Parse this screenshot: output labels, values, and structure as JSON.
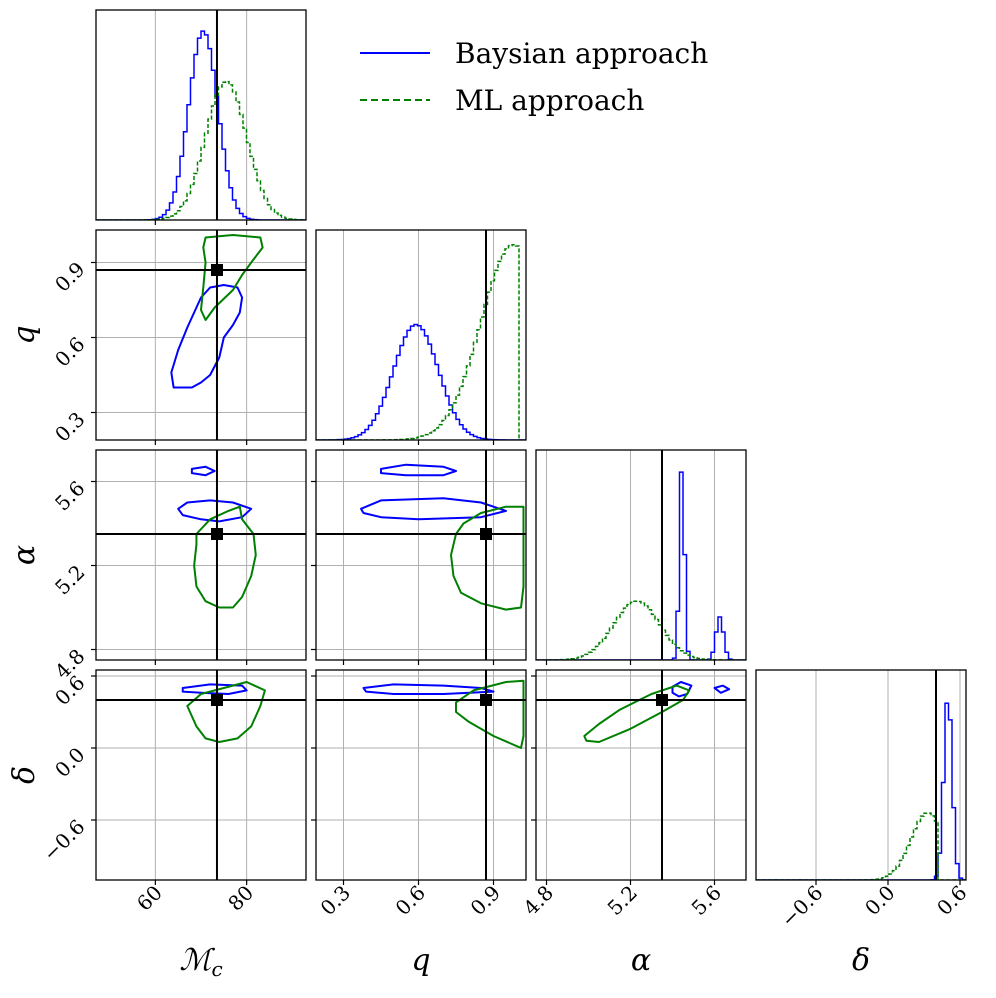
{
  "chart_data": {
    "type": "corner",
    "parameters": [
      {
        "key": "mc",
        "label": "ℳ",
        "label_sub": "c",
        "range": [
          47,
          93
        ],
        "ticks": [
          60,
          80
        ],
        "tick_labels": [
          "60",
          "80"
        ],
        "truth": 73.5
      },
      {
        "key": "q",
        "label": "q",
        "label_sub": "",
        "range": [
          0.19,
          1.03
        ],
        "ticks": [
          0.3,
          0.6,
          0.9
        ],
        "tick_labels": [
          "0.3",
          "0.6",
          "0.9"
        ],
        "truth": 0.87
      },
      {
        "key": "alpha",
        "label": "α",
        "label_sub": "",
        "range": [
          4.75,
          5.75
        ],
        "ticks": [
          4.8,
          5.2,
          5.6
        ],
        "tick_labels": [
          "4.8",
          "5.2",
          "5.6"
        ],
        "truth": 5.35
      },
      {
        "key": "delta",
        "label": "δ",
        "label_sub": "",
        "range": [
          -1.1,
          0.65
        ],
        "ticks": [
          -0.6,
          0.0,
          0.6
        ],
        "tick_labels": [
          "−0.6",
          "0.0",
          "0.6"
        ],
        "truth": 0.4
      }
    ],
    "series": [
      {
        "name": "Baysian approach",
        "color": "#0000ff",
        "style": "solid",
        "marginals": [
          {
            "center": 70.5,
            "sigma": 3.2,
            "peak": 0.9
          },
          {
            "center": 0.59,
            "sigma": 0.09,
            "peak": 0.55
          },
          {
            "modes": [
              {
                "center": 5.445,
                "sigma": 0.012,
                "amp": 1.0
              },
              {
                "center": 5.625,
                "sigma": 0.018,
                "amp": 0.22
              }
            ],
            "peak": 0.93
          },
          {
            "center": 0.5,
            "sigma": 0.035,
            "peak": 0.88
          }
        ]
      },
      {
        "name": "ML approach",
        "color": "#008000",
        "style": "dashed",
        "marginals": [
          {
            "center": 75.5,
            "sigma": 4.5,
            "peak": 0.66
          },
          {
            "center": 0.98,
            "sigma": 0.13,
            "peak": 0.93,
            "cutoff": 0.995
          },
          {
            "center": 5.23,
            "sigma": 0.11,
            "peak": 0.28
          },
          {
            "center": 0.33,
            "sigma": 0.14,
            "peak": 0.32,
            "cutoff": 0.43
          }
        ]
      }
    ],
    "contours": {
      "q_mc": {
        "blue": [
          [
            [
              64,
              0.4
            ],
            [
              63.5,
              0.46
            ],
            [
              65,
              0.55
            ],
            [
              67,
              0.64
            ],
            [
              68.5,
              0.7
            ],
            [
              70,
              0.76
            ],
            [
              72,
              0.8
            ],
            [
              75,
              0.81
            ],
            [
              78,
              0.8
            ],
            [
              79,
              0.76
            ],
            [
              78.5,
              0.7
            ],
            [
              77,
              0.65
            ],
            [
              75,
              0.6
            ],
            [
              74,
              0.52
            ],
            [
              72,
              0.45
            ],
            [
              70,
              0.42
            ],
            [
              68,
              0.4
            ]
          ]
        ],
        "green": [
          [
            [
              71,
              1.0
            ],
            [
              77,
              1.01
            ],
            [
              83,
              1.0
            ],
            [
              83.5,
              0.96
            ],
            [
              81,
              0.9
            ],
            [
              79,
              0.85
            ],
            [
              77,
              0.79
            ],
            [
              73,
              0.72
            ],
            [
              71,
              0.67
            ],
            [
              70,
              0.71
            ],
            [
              70.5,
              0.8
            ],
            [
              71,
              0.9
            ],
            [
              70.5,
              0.96
            ]
          ]
        ]
      },
      "alpha_mc": {
        "blue": [
          [
            [
              68,
              5.66
            ],
            [
              71,
              5.67
            ],
            [
              73,
              5.65
            ],
            [
              71,
              5.63
            ],
            [
              68,
              5.64
            ]
          ],
          [
            [
              65,
              5.47
            ],
            [
              67,
              5.5
            ],
            [
              72,
              5.51
            ],
            [
              77,
              5.5
            ],
            [
              81,
              5.47
            ],
            [
              79,
              5.43
            ],
            [
              74,
              5.41
            ],
            [
              70,
              5.42
            ],
            [
              66,
              5.44
            ]
          ]
        ],
        "green": [
          [
            [
              69,
              5.35
            ],
            [
              72,
              5.42
            ],
            [
              76,
              5.46
            ],
            [
              78.5,
              5.48
            ],
            [
              79,
              5.42
            ],
            [
              81.5,
              5.35
            ],
            [
              82,
              5.25
            ],
            [
              81,
              5.15
            ],
            [
              79,
              5.05
            ],
            [
              77,
              5.0
            ],
            [
              74,
              5.0
            ],
            [
              71,
              5.03
            ],
            [
              69,
              5.1
            ],
            [
              68.5,
              5.2
            ],
            [
              69,
              5.3
            ]
          ]
        ]
      },
      "alpha_q": {
        "blue": [
          [
            [
              0.45,
              5.66
            ],
            [
              0.55,
              5.68
            ],
            [
              0.7,
              5.67
            ],
            [
              0.75,
              5.65
            ],
            [
              0.7,
              5.63
            ],
            [
              0.55,
              5.63
            ],
            [
              0.45,
              5.64
            ]
          ],
          [
            [
              0.37,
              5.47
            ],
            [
              0.45,
              5.51
            ],
            [
              0.7,
              5.52
            ],
            [
              0.85,
              5.5
            ],
            [
              0.95,
              5.46
            ],
            [
              0.85,
              5.43
            ],
            [
              0.6,
              5.42
            ],
            [
              0.45,
              5.43
            ],
            [
              0.38,
              5.45
            ]
          ]
        ],
        "green": [
          [
            [
              0.78,
              5.4
            ],
            [
              0.85,
              5.45
            ],
            [
              0.95,
              5.48
            ],
            [
              1.02,
              5.48
            ],
            [
              1.02,
              5.3
            ],
            [
              1.02,
              5.1
            ],
            [
              1.01,
              5.0
            ],
            [
              0.95,
              4.99
            ],
            [
              0.85,
              5.02
            ],
            [
              0.77,
              5.07
            ],
            [
              0.74,
              5.15
            ],
            [
              0.73,
              5.25
            ],
            [
              0.75,
              5.35
            ]
          ]
        ]
      },
      "delta_mc": {
        "blue": [
          [
            [
              66,
              0.5
            ],
            [
              72,
              0.53
            ],
            [
              79,
              0.52
            ],
            [
              80,
              0.48
            ],
            [
              76,
              0.45
            ],
            [
              70,
              0.46
            ],
            [
              66,
              0.47
            ]
          ]
        ],
        "green": [
          [
            [
              67,
              0.35
            ],
            [
              70,
              0.45
            ],
            [
              75,
              0.5
            ],
            [
              80,
              0.55
            ],
            [
              84,
              0.48
            ],
            [
              83,
              0.35
            ],
            [
              81,
              0.18
            ],
            [
              78,
              0.08
            ],
            [
              74,
              0.05
            ],
            [
              71,
              0.08
            ],
            [
              69,
              0.18
            ]
          ]
        ]
      },
      "delta_q": {
        "blue": [
          [
            [
              0.38,
              0.5
            ],
            [
              0.5,
              0.53
            ],
            [
              0.7,
              0.52
            ],
            [
              0.85,
              0.5
            ],
            [
              0.9,
              0.47
            ],
            [
              0.7,
              0.45
            ],
            [
              0.5,
              0.45
            ],
            [
              0.39,
              0.47
            ]
          ]
        ],
        "green": [
          [
            [
              0.75,
              0.38
            ],
            [
              0.82,
              0.48
            ],
            [
              0.95,
              0.55
            ],
            [
              1.02,
              0.56
            ],
            [
              1.02,
              0.35
            ],
            [
              1.02,
              0.1
            ],
            [
              1.01,
              0.0
            ],
            [
              0.9,
              0.1
            ],
            [
              0.8,
              0.22
            ],
            [
              0.75,
              0.3
            ]
          ]
        ]
      },
      "delta_alpha": {
        "blue": [
          [
            [
              5.4,
              0.51
            ],
            [
              5.44,
              0.55
            ],
            [
              5.49,
              0.52
            ],
            [
              5.47,
              0.45
            ],
            [
              5.43,
              0.43
            ],
            [
              5.4,
              0.46
            ]
          ],
          [
            [
              5.6,
              0.5
            ],
            [
              5.64,
              0.52
            ],
            [
              5.67,
              0.49
            ],
            [
              5.63,
              0.46
            ]
          ]
        ],
        "green": [
          [
            [
              4.98,
              0.1
            ],
            [
              5.05,
              0.2
            ],
            [
              5.15,
              0.32
            ],
            [
              5.3,
              0.45
            ],
            [
              5.42,
              0.52
            ],
            [
              5.48,
              0.48
            ],
            [
              5.45,
              0.4
            ],
            [
              5.35,
              0.3
            ],
            [
              5.2,
              0.16
            ],
            [
              5.05,
              0.05
            ],
            [
              4.99,
              0.06
            ]
          ]
        ]
      }
    },
    "legend_position": "top-right",
    "grid": true
  }
}
